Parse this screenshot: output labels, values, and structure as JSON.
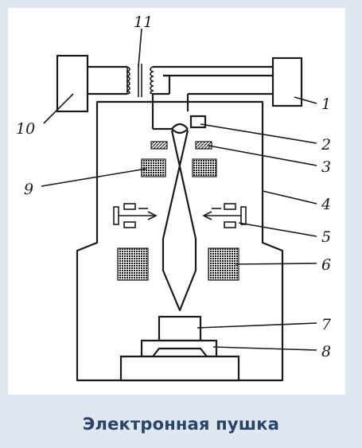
{
  "caption": "Электронная пушка",
  "labels": {
    "l1": "1",
    "l2": "2",
    "l3": "3",
    "l4": "4",
    "l5": "5",
    "l6": "6",
    "l7": "7",
    "l8": "8",
    "l9": "9",
    "l10": "10",
    "l11": "11"
  }
}
